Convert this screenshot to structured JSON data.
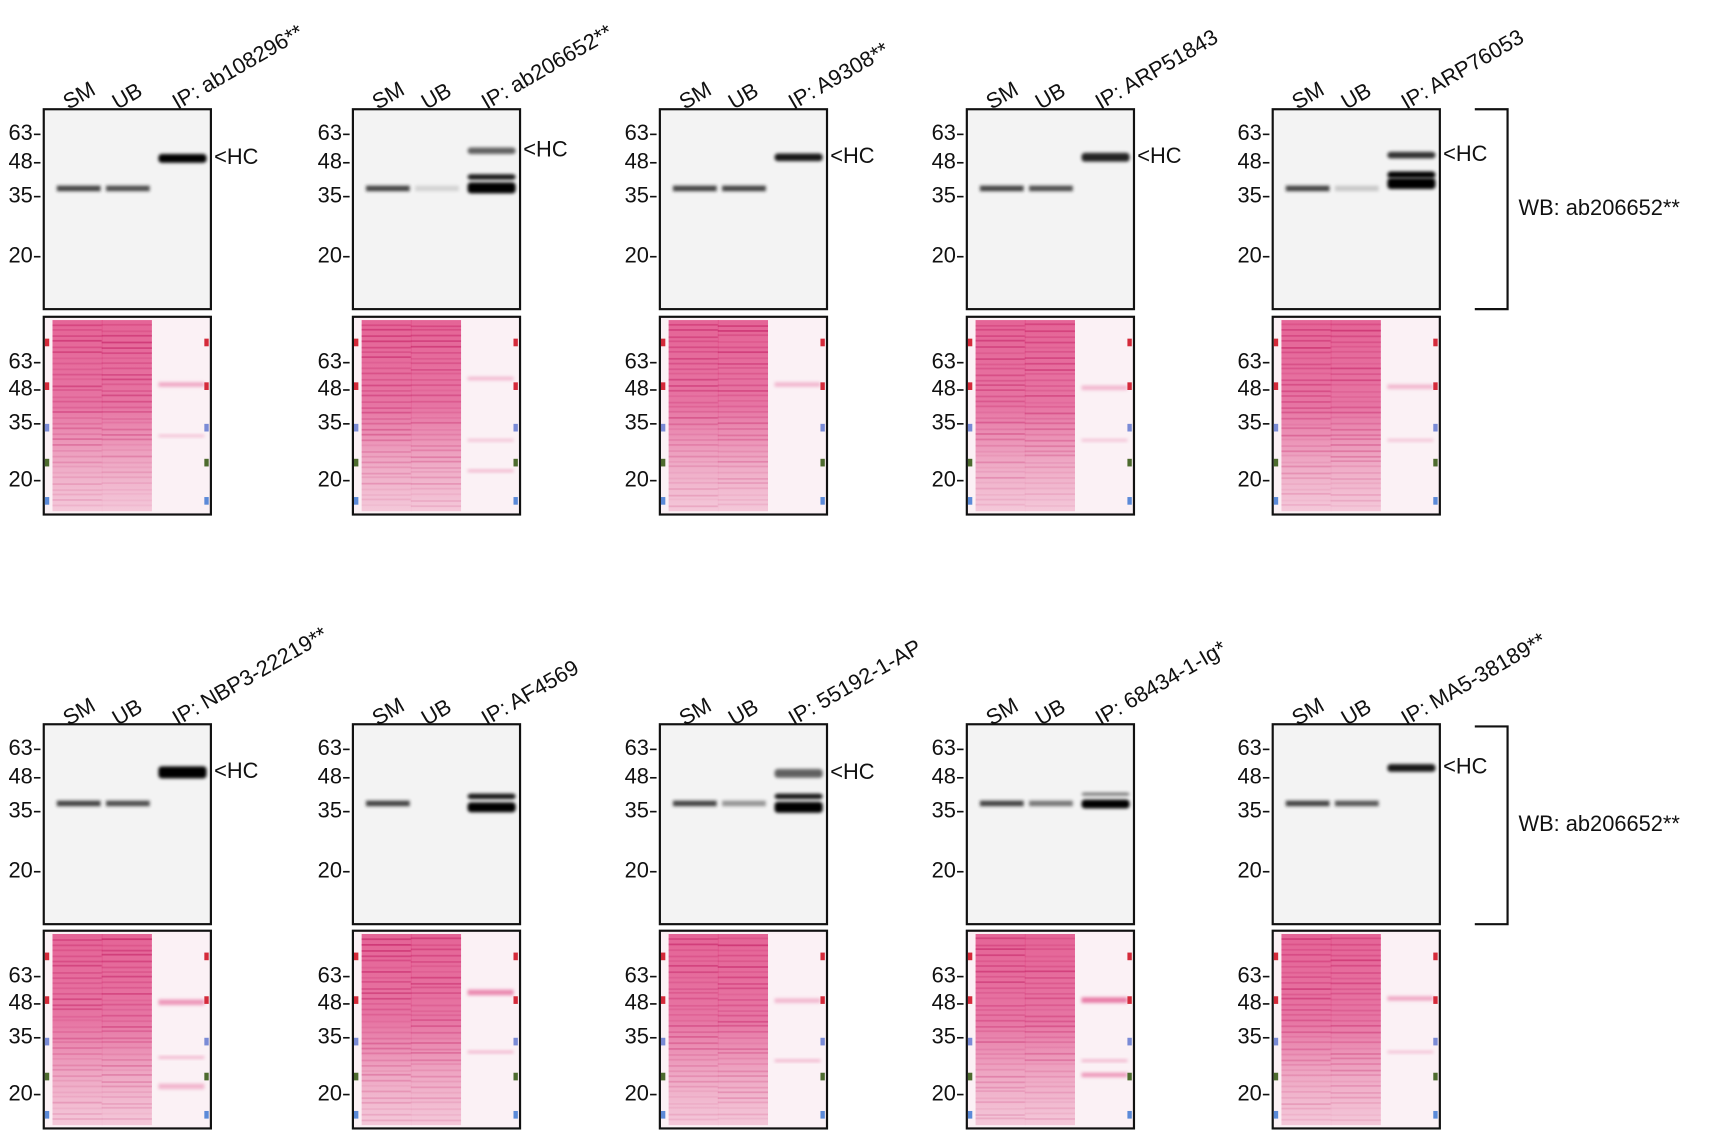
{
  "panels": [
    {
      "lanes": [
        "SM",
        "UB",
        "IP: ab108296**"
      ],
      "hc": "<HC",
      "blot_markers": [
        "63",
        "48",
        "35",
        "20"
      ],
      "ponceau_markers": [
        "63",
        "48",
        "35",
        "20"
      ]
    },
    {
      "lanes": [
        "SM",
        "UB",
        "IP: ab206652**"
      ],
      "hc": "<HC",
      "blot_markers": [
        "63",
        "48",
        "35",
        "20"
      ],
      "ponceau_markers": [
        "63",
        "48",
        "35",
        "20"
      ]
    },
    {
      "lanes": [
        "SM",
        "UB",
        "IP: A9308**"
      ],
      "hc": "<HC",
      "blot_markers": [
        "63",
        "48",
        "35",
        "20"
      ],
      "ponceau_markers": [
        "63",
        "48",
        "35",
        "20"
      ]
    },
    {
      "lanes": [
        "SM",
        "UB",
        "IP: ARP51843"
      ],
      "hc": "<HC",
      "blot_markers": [
        "63",
        "48",
        "35",
        "20"
      ],
      "ponceau_markers": [
        "63",
        "48",
        "35",
        "20"
      ]
    },
    {
      "lanes": [
        "SM",
        "UB",
        "IP: ARP76053"
      ],
      "hc": "<HC",
      "blot_markers": [
        "63",
        "48",
        "35",
        "20"
      ],
      "ponceau_markers": [
        "63",
        "48",
        "35",
        "20"
      ]
    },
    {
      "lanes": [
        "SM",
        "UB",
        "IP: NBP3-22219**"
      ],
      "hc": "<HC",
      "blot_markers": [
        "63",
        "48",
        "35",
        "20"
      ],
      "ponceau_markers": [
        "63",
        "48",
        "35",
        "20"
      ]
    },
    {
      "lanes": [
        "SM",
        "UB",
        "IP: AF4569"
      ],
      "blot_markers": [
        "63",
        "48",
        "35",
        "20"
      ],
      "ponceau_markers": [
        "63",
        "48",
        "35",
        "20"
      ]
    },
    {
      "lanes": [
        "SM",
        "UB",
        "IP: 55192-1-AP"
      ],
      "hc": "<HC",
      "blot_markers": [
        "63",
        "48",
        "35",
        "20"
      ],
      "ponceau_markers": [
        "63",
        "48",
        "35",
        "20"
      ]
    },
    {
      "lanes": [
        "SM",
        "UB",
        "IP: 68434-1-Ig*"
      ],
      "blot_markers": [
        "63",
        "48",
        "35",
        "20"
      ],
      "ponceau_markers": [
        "63",
        "48",
        "35",
        "20"
      ]
    },
    {
      "lanes": [
        "SM",
        "UB",
        "IP: MA5-38189**"
      ],
      "hc": "<HC",
      "blot_markers": [
        "63",
        "48",
        "35",
        "20"
      ],
      "ponceau_markers": [
        "63",
        "48",
        "35",
        "20"
      ]
    }
  ],
  "wb_labels": [
    "WB: ab206652**",
    "WB: ab206652**"
  ]
}
